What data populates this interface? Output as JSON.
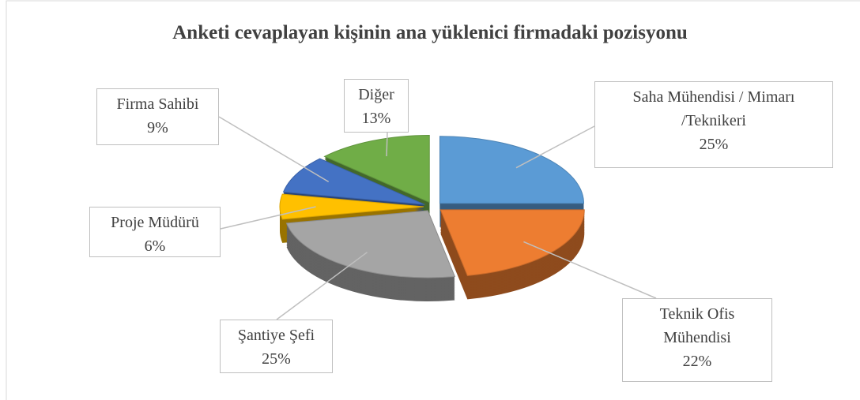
{
  "chart_data": {
    "type": "pie",
    "title": "Anketi cevaplayan kişinin ana yüklenici firmadaki pozisyonu",
    "categories": [
      "Saha Mühendisi / Mimarı /Teknikeri",
      "Teknik Ofis Mühendisi",
      "Şantiye Şefi",
      "Proje Müdürü",
      "Firma Sahibi",
      "Diğer"
    ],
    "values": [
      25,
      22,
      25,
      6,
      9,
      13
    ],
    "value_labels": [
      "25%",
      "22%",
      "25%",
      "6%",
      "9%",
      "13%"
    ],
    "colors": [
      "#5b9bd5",
      "#ed7d31",
      "#a5a5a5",
      "#ffc000",
      "#4472c4",
      "#70ad47"
    ]
  }
}
